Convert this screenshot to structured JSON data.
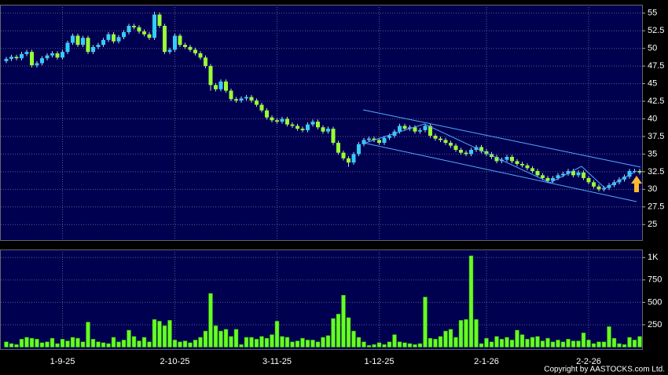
{
  "chart_data": {
    "type": "candlestick",
    "categories": [
      null,
      null,
      null,
      null,
      null,
      null,
      null,
      null,
      null,
      null,
      null,
      "1-9-25",
      null,
      null,
      null,
      null,
      null,
      null,
      null,
      null,
      null,
      null,
      null,
      null,
      null,
      null,
      null,
      null,
      null,
      null,
      null,
      null,
      null,
      "2-10-25",
      null,
      null,
      null,
      null,
      null,
      null,
      null,
      null,
      null,
      null,
      null,
      null,
      null,
      null,
      null,
      null,
      null,
      null,
      null,
      "3-11-25",
      null,
      null,
      null,
      null,
      null,
      null,
      null,
      null,
      null,
      null,
      null,
      null,
      null,
      null,
      null,
      null,
      null,
      null,
      null,
      "1-12-25",
      null,
      null,
      null,
      null,
      null,
      null,
      null,
      null,
      null,
      null,
      null,
      null,
      null,
      null,
      null,
      null,
      null,
      null,
      null,
      null,
      "2-1-26",
      null,
      null,
      null,
      null,
      null,
      null,
      null,
      null,
      null,
      null,
      null,
      null,
      null,
      null,
      null,
      null,
      null,
      null,
      null,
      "2-2-26",
      null,
      null,
      null,
      null,
      null,
      null,
      null,
      null,
      null,
      null
    ],
    "open": [
      48.2,
      48.5,
      48.8,
      48.6,
      49.2,
      49.5,
      47.6,
      47.9,
      48.6,
      49.0,
      49.3,
      48.7,
      49.5,
      50.8,
      51.8,
      50.5,
      51.5,
      49.5,
      50.2,
      50.5,
      51.2,
      52.0,
      51.0,
      51.6,
      52.3,
      53.2,
      53.0,
      52.4,
      52.0,
      51.5,
      54.8,
      53.2,
      49.5,
      49.8,
      51.8,
      50.5,
      50.2,
      49.8,
      49.3,
      48.7,
      47.5,
      44.8,
      44.2,
      45.3,
      44.0,
      42.8,
      42.6,
      42.9,
      43.1,
      42.6,
      42.0,
      41.2,
      40.2,
      39.8,
      39.6,
      40.0,
      39.2,
      39.0,
      38.6,
      38.4,
      39.2,
      39.6,
      38.8,
      38.2,
      38.6,
      36.6,
      35.2,
      34.4,
      33.8,
      35.0,
      36.4,
      37.0,
      37.2,
      37.0,
      36.6,
      37.3,
      37.6,
      38.2,
      39.0,
      38.6,
      38.8,
      38.2,
      38.4,
      39.0,
      37.6,
      37.2,
      37.0,
      36.6,
      36.2,
      35.6,
      35.2,
      35.0,
      35.6,
      36.0,
      35.4,
      35.0,
      34.6,
      34.0,
      34.2,
      34.6,
      34.0,
      33.6,
      33.4,
      33.0,
      32.6,
      32.0,
      31.6,
      31.2,
      31.6,
      32.0,
      32.2,
      32.6,
      32.0,
      32.4,
      31.6,
      31.0,
      30.4,
      30.0,
      30.2,
      30.6,
      31.0,
      31.4,
      31.8,
      32.6,
      32.6
    ],
    "high": [
      48.8,
      49.1,
      49.1,
      49.5,
      49.8,
      49.8,
      48.2,
      48.9,
      49.3,
      49.6,
      49.6,
      49.8,
      51.1,
      52.1,
      52.1,
      51.8,
      51.8,
      50.5,
      50.8,
      51.5,
      52.3,
      52.3,
      51.9,
      52.6,
      53.5,
      53.5,
      53.3,
      52.7,
      52.3,
      55.2,
      55.1,
      53.5,
      50.1,
      52.1,
      52.1,
      50.8,
      50.5,
      50.1,
      49.6,
      49.0,
      47.8,
      45.1,
      45.6,
      45.6,
      44.3,
      43.1,
      43.2,
      43.4,
      43.4,
      42.9,
      42.3,
      41.5,
      40.5,
      40.1,
      40.3,
      40.3,
      39.5,
      39.3,
      38.9,
      39.5,
      39.9,
      39.9,
      39.1,
      38.9,
      38.9,
      36.9,
      35.5,
      34.7,
      35.3,
      36.7,
      37.3,
      37.5,
      37.5,
      37.3,
      37.6,
      37.9,
      38.5,
      39.3,
      39.3,
      39.1,
      39.1,
      38.7,
      39.3,
      39.3,
      37.9,
      37.5,
      37.3,
      36.9,
      36.5,
      35.9,
      35.5,
      35.9,
      36.3,
      36.3,
      35.7,
      35.3,
      34.9,
      34.5,
      34.9,
      34.9,
      34.3,
      33.9,
      33.7,
      33.3,
      32.9,
      32.3,
      31.9,
      31.9,
      32.3,
      32.5,
      32.9,
      32.9,
      32.7,
      32.7,
      31.9,
      31.3,
      30.7,
      30.5,
      30.9,
      31.3,
      31.7,
      32.1,
      32.9,
      32.9,
      32.9
    ],
    "low": [
      47.9,
      48.2,
      48.3,
      48.3,
      48.9,
      47.3,
      47.3,
      47.6,
      48.3,
      48.7,
      48.4,
      48.4,
      49.2,
      50.5,
      50.2,
      50.2,
      49.2,
      49.2,
      49.9,
      50.2,
      50.9,
      50.7,
      50.7,
      51.3,
      52.0,
      52.7,
      52.1,
      51.7,
      51.2,
      51.2,
      52.9,
      49.2,
      49.2,
      49.5,
      50.2,
      49.9,
      49.5,
      49.0,
      48.4,
      47.2,
      44.0,
      43.9,
      43.9,
      43.7,
      42.5,
      42.3,
      42.3,
      42.6,
      42.3,
      41.7,
      40.9,
      39.9,
      39.5,
      39.3,
      39.3,
      38.9,
      38.7,
      38.3,
      38.1,
      38.1,
      38.9,
      38.5,
      37.9,
      37.9,
      36.3,
      34.9,
      34.1,
      33.2,
      33.5,
      34.7,
      36.1,
      36.7,
      36.7,
      36.3,
      36.3,
      37.0,
      37.3,
      37.9,
      38.3,
      38.3,
      37.9,
      37.9,
      38.1,
      37.3,
      36.9,
      36.7,
      36.3,
      35.9,
      35.3,
      34.9,
      34.7,
      34.7,
      35.3,
      35.1,
      34.7,
      34.3,
      33.7,
      33.7,
      33.9,
      33.7,
      33.3,
      33.1,
      32.7,
      32.3,
      31.7,
      31.3,
      30.9,
      30.9,
      31.3,
      31.7,
      31.9,
      31.7,
      31.7,
      31.3,
      30.7,
      30.1,
      29.7,
      29.7,
      29.9,
      30.3,
      30.7,
      31.1,
      31.5,
      32.3,
      32.1
    ],
    "close": [
      48.5,
      48.8,
      48.6,
      49.2,
      49.5,
      47.6,
      47.9,
      48.6,
      49.0,
      49.3,
      48.7,
      49.5,
      50.8,
      51.8,
      50.5,
      51.5,
      49.5,
      50.2,
      50.5,
      51.2,
      52.0,
      51.0,
      51.6,
      52.3,
      53.2,
      53.0,
      52.4,
      52.0,
      51.5,
      54.8,
      53.2,
      49.5,
      49.8,
      51.8,
      50.5,
      50.2,
      49.8,
      49.3,
      48.7,
      47.5,
      44.8,
      44.2,
      45.3,
      44.0,
      42.8,
      42.6,
      42.9,
      43.1,
      42.6,
      42.0,
      41.2,
      40.2,
      39.8,
      39.6,
      40.0,
      39.2,
      39.0,
      38.6,
      38.4,
      39.2,
      39.6,
      38.8,
      38.2,
      38.6,
      36.6,
      35.2,
      34.4,
      33.8,
      35.0,
      36.4,
      37.0,
      37.2,
      37.0,
      36.6,
      37.3,
      37.6,
      38.2,
      39.0,
      38.6,
      38.8,
      38.2,
      38.4,
      39.0,
      37.6,
      37.2,
      37.0,
      36.6,
      36.2,
      35.6,
      35.2,
      35.0,
      35.6,
      36.0,
      35.4,
      35.0,
      34.6,
      34.0,
      34.2,
      34.6,
      34.0,
      33.6,
      33.4,
      33.0,
      32.6,
      32.0,
      31.6,
      31.2,
      31.6,
      32.0,
      32.2,
      32.6,
      32.0,
      32.4,
      31.6,
      31.0,
      30.4,
      30.0,
      30.2,
      30.6,
      31.0,
      31.4,
      31.8,
      32.6,
      32.6,
      32.4
    ],
    "up_color": "#33ccff",
    "down_color": "#99ff33",
    "ylim": [
      22.8,
      56.2
    ],
    "yticks": [
      25,
      27.5,
      30,
      32.5,
      35,
      37.5,
      40,
      42.5,
      45,
      47.5,
      50,
      52.5,
      55
    ],
    "grid": true,
    "volume": {
      "type": "bar",
      "color": "#66ff22",
      "values": [
        60,
        40,
        30,
        90,
        110,
        100,
        90,
        50,
        60,
        100,
        40,
        90,
        70,
        110,
        100,
        60,
        280,
        90,
        60,
        50,
        40,
        110,
        60,
        80,
        190,
        120,
        70,
        110,
        60,
        310,
        290,
        240,
        300,
        80,
        60,
        70,
        50,
        80,
        110,
        180,
        600,
        240,
        180,
        200,
        120,
        200,
        30,
        110,
        110,
        90,
        120,
        100,
        140,
        290,
        120,
        110,
        60,
        70,
        100,
        80,
        80,
        60,
        110,
        130,
        320,
        370,
        580,
        330,
        180,
        110,
        60,
        20,
        30,
        50,
        30,
        60,
        140,
        60,
        50,
        40,
        30,
        40,
        560,
        100,
        90,
        120,
        180,
        200,
        110,
        300,
        310,
        1020,
        310,
        40,
        100,
        60,
        120,
        90,
        110,
        80,
        190,
        140,
        90,
        110,
        120,
        70,
        100,
        60,
        80,
        60,
        90,
        70,
        70,
        160,
        80,
        40,
        60,
        60,
        230,
        100,
        40,
        30,
        110,
        80,
        120
      ],
      "ylim": [
        0,
        1090
      ],
      "yticks": [
        250,
        500,
        750,
        {
          "value": 1000,
          "label": "1K"
        }
      ]
    }
  },
  "footer": "Copyright by AASTOCKS.com Ltd."
}
